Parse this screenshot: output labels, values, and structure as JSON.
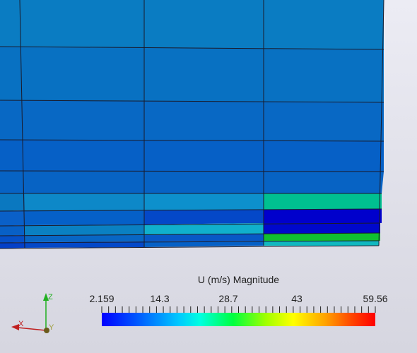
{
  "legend": {
    "title": "U (m/s) Magnitude",
    "min": 2.159,
    "max": 59.56,
    "tick_labels": [
      "2.159",
      "14.3",
      "28.7",
      "43",
      "59.56"
    ],
    "tick_values": [
      2.159,
      14.3,
      28.7,
      43,
      59.56
    ],
    "colormap": [
      "#0000ff",
      "#00a0ff",
      "#00ffff",
      "#00ff60",
      "#80ff00",
      "#ffff00",
      "#ffa000",
      "#ff3000",
      "#ff0000"
    ]
  },
  "axes": {
    "x_label": "X",
    "y_label": "Y",
    "z_label": "Z"
  },
  "colors": {
    "background_top": "#ececf4",
    "background_bottom": "#d6d6e0",
    "grid_line": "#1a1a2a",
    "cell_mid_blue": "#0a78c0",
    "cell_dark_blue": "#0550c8",
    "cell_teal": "#00c090",
    "cell_deep_blue": "#0000d0",
    "cell_green": "#10c030",
    "cell_cyan": "#10b0d0"
  }
}
